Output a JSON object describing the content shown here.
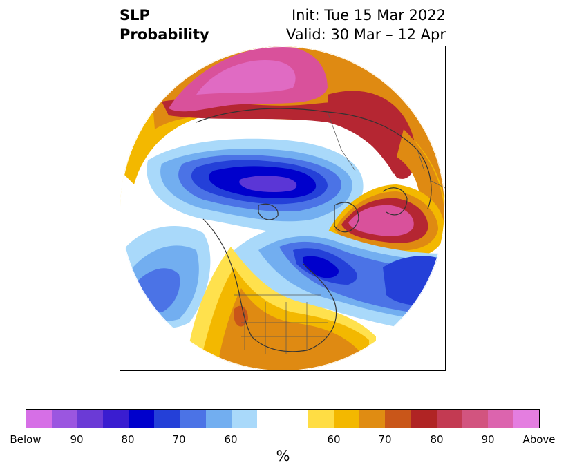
{
  "header": {
    "title_line1": "SLP",
    "title_line2": "Probability",
    "init": "Init: Tue 15 Mar 2022",
    "valid": "Valid: 30 Mar – 12 Apr"
  },
  "colorbar": {
    "colors": [
      "#d66fe6",
      "#9b56e0",
      "#6b3ad6",
      "#3a1dd0",
      "#0000cc",
      "#2440d8",
      "#4b73e6",
      "#72aef0",
      "#a9d9fa",
      "#ffffff",
      "#ffffff",
      "#ffdd44",
      "#f3b800",
      "#e08c12",
      "#c95619",
      "#b02424",
      "#c33a52",
      "#d2547f",
      "#dc64ae",
      "#e47ee0"
    ],
    "tick_labels": [
      "Below",
      "90",
      "80",
      "70",
      "60",
      "60",
      "70",
      "80",
      "90",
      "Above"
    ],
    "unit": "%"
  },
  "map": {
    "projection": "north-polar-stereographic",
    "palette": {
      "above_high": "#d9519b",
      "above_mid": "#b52632",
      "above_low": "#df8a12",
      "above_min": "#f3b800",
      "above_edge": "#ffe14d",
      "neutral": "#ffffff",
      "below_edge": "#a9d9fa",
      "below_low": "#72aef0",
      "below_mid": "#4b73e6",
      "below_high": "#2440d8",
      "below_max": "#0000cc",
      "below_extreme": "#5b36d6"
    }
  }
}
